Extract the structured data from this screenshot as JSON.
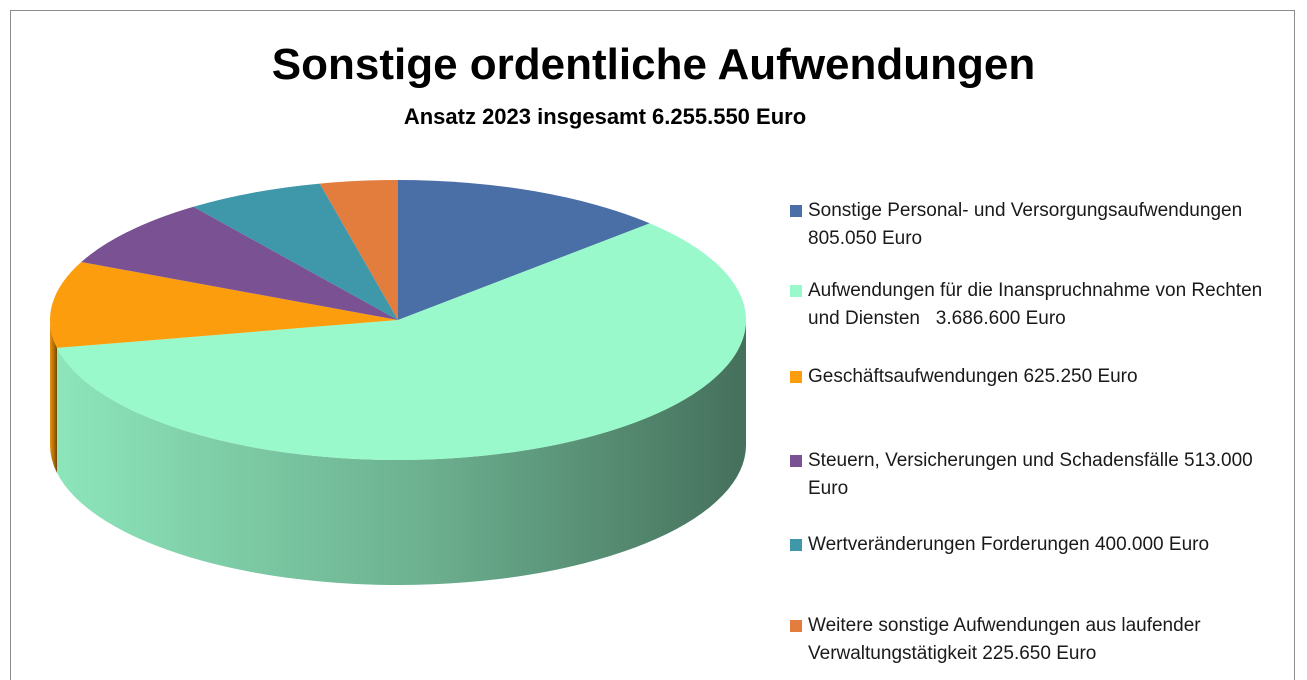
{
  "chart_data": {
    "type": "pie3d",
    "title": "Sonstige ordentliche Aufwendungen",
    "subtitle": "Ansatz 2023 insgesamt 6.255.550 Euro",
    "categories": [
      "Sonstige Personal- und Versorgungsaufwendungen 805.050 Euro",
      "Aufwendungen für die Inanspruchnahme von Rechten und Diensten   3.686.600 Euro",
      "Geschäftsaufwendungen 625.250 Euro",
      "Steuern, Versicherungen und Schadensfälle 513.000 Euro",
      "Wertveränderungen Forderungen 400.000 Euro",
      "Weitere sonstige Aufwendungen aus laufender Verwaltungstätigkeit 225.650 Euro"
    ],
    "values": [
      805050,
      3686600,
      625250,
      513000,
      400000,
      225650
    ],
    "colors": [
      "#4a6ea6",
      "#99f9cb",
      "#fb9d0d",
      "#7a5294",
      "#3e98aa",
      "#e27d3e"
    ],
    "legend": "right"
  }
}
